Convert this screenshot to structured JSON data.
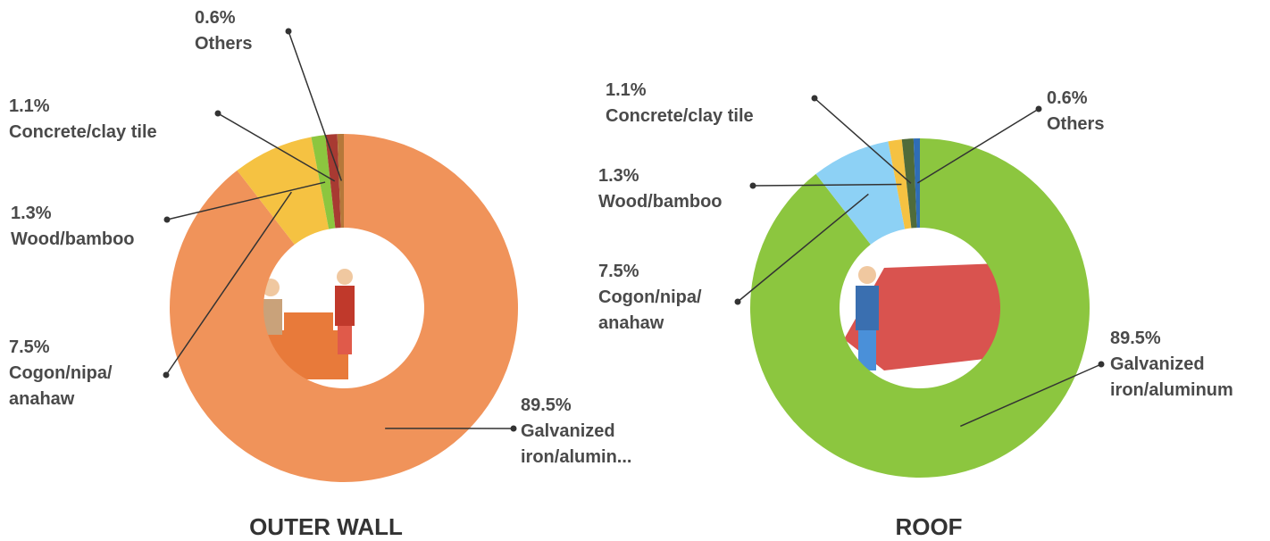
{
  "chart_data": [
    {
      "type": "pie",
      "title": "OUTER WALL",
      "categories": [
        "Galvanized iron/alumin...",
        "Cogon/nipa/ anahaw",
        "Wood/bamboo",
        "Concrete/clay tile",
        "Others"
      ],
      "values": [
        89.5,
        7.5,
        1.3,
        1.1,
        0.6
      ],
      "value_labels": [
        "89.5%",
        "7.5%",
        "1.3%",
        "1.1%",
        "0.6%"
      ],
      "colors": [
        "#f0935a",
        "#f5c242",
        "#8cc63f",
        "#a83a32",
        "#b5783a"
      ]
    },
    {
      "type": "pie",
      "title": "ROOF",
      "categories": [
        "Galvanized iron/aluminum",
        "Cogon/nipa/ anahaw",
        "Wood/bamboo",
        "Concrete/clay tile",
        "Others"
      ],
      "values": [
        89.5,
        7.5,
        1.3,
        1.1,
        0.6
      ],
      "value_labels": [
        "89.5%",
        "7.5%",
        "1.3%",
        "1.1%",
        "0.6%"
      ],
      "colors": [
        "#8cc63f",
        "#8dd1f5",
        "#f5c242",
        "#4f6b3a",
        "#2f6db5"
      ]
    }
  ]
}
